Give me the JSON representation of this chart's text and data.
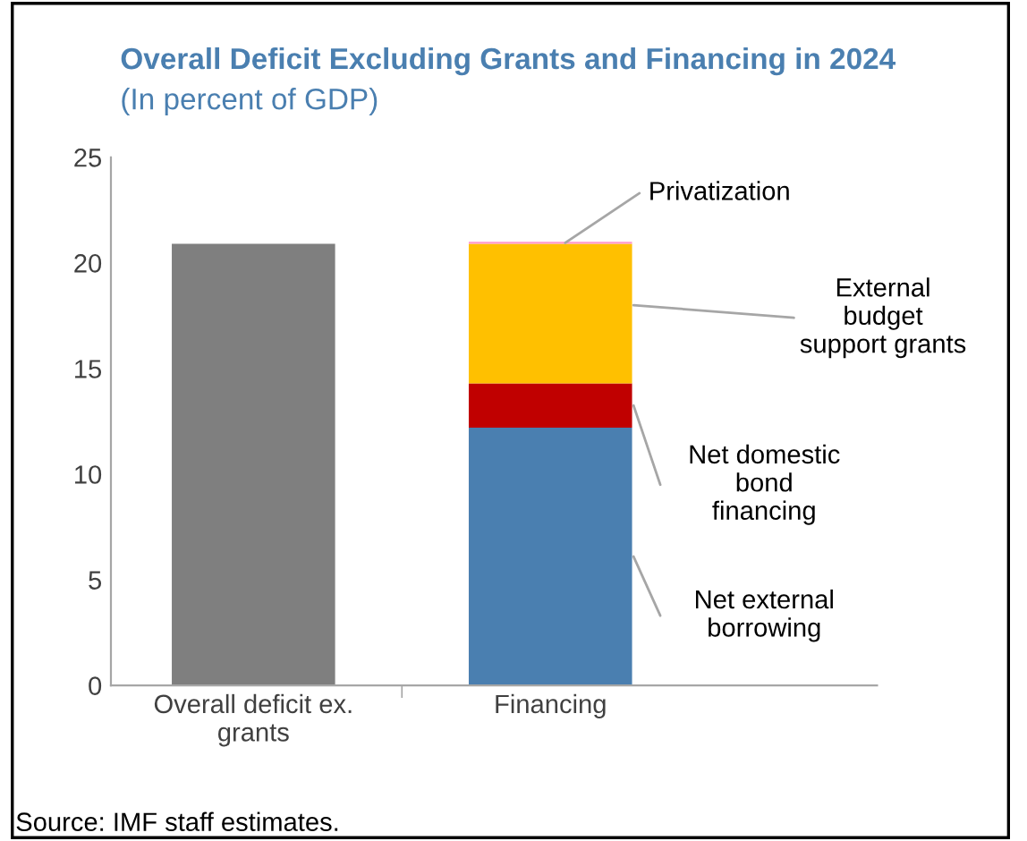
{
  "chart_data": {
    "type": "bar",
    "stacked": true,
    "title": "Overall Deficit Excluding Grants and Financing in 2024",
    "subtitle": "(In percent of GDP)",
    "categories": [
      "Overall deficit ex.\ngrants",
      "Financing"
    ],
    "series": [
      {
        "color": "#7f7f7f",
        "values": [
          20.9,
          null
        ]
      },
      {
        "name": "Net external\nborrowing",
        "color": "#4a7fb0",
        "values": [
          null,
          12.2
        ]
      },
      {
        "name": "Net domestic\nbond\nfinancing",
        "color": "#c00000",
        "values": [
          null,
          2.1
        ]
      },
      {
        "name": "External\nbudget\nsupport grants",
        "color": "#ffc000",
        "values": [
          null,
          6.6
        ]
      },
      {
        "name": "Privatization",
        "color": "#ff99cc",
        "values": [
          null,
          0.1
        ]
      }
    ],
    "ylim": [
      0,
      25
    ],
    "yticks": [
      0,
      5,
      10,
      15,
      20,
      25
    ],
    "grid": false,
    "legend": false,
    "annotations": [
      "Source: IMF staff estimates."
    ]
  }
}
